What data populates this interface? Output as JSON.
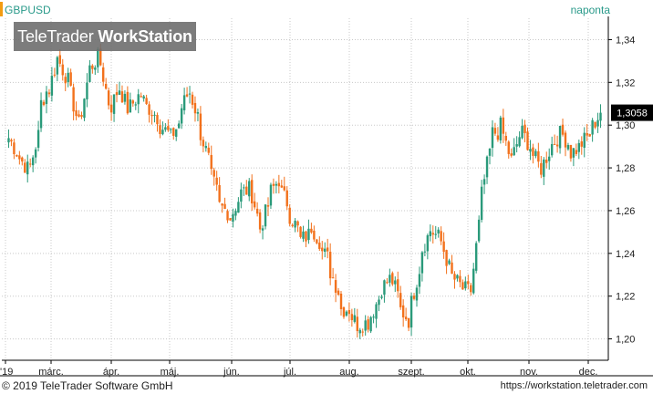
{
  "header": {
    "symbol": "GBPUSD",
    "interval": "naponta",
    "watermark_brand": "TeleTrader",
    "watermark_product": "WorkStation"
  },
  "footer": {
    "copyright": "© 2019 TeleTrader Software GmbH",
    "url": "https://workstation.teletrader.com"
  },
  "colors": {
    "up": "#2a9a7a",
    "down": "#f2711c",
    "grid": "#c8c8c8",
    "axis": "#000000",
    "last_price_bg": "#000000",
    "last_price_text": "#ffffff",
    "symbol_accent": "#f39c12"
  },
  "chart_data": {
    "type": "candlestick",
    "title": "GBPUSD",
    "xlabel": "",
    "ylabel": "",
    "ylim": [
      1.19,
      1.35
    ],
    "y_ticks": [
      "1,20",
      "1,22",
      "1,24",
      "1,26",
      "1,28",
      "1,30",
      "1,32",
      "1,34"
    ],
    "x_ticks": [
      "'19",
      "márc.",
      "ápr.",
      "máj.",
      "jún.",
      "júl.",
      "aug.",
      "szept.",
      "okt.",
      "nov.",
      "dec."
    ],
    "grid": true,
    "last_price": 1.3058,
    "last_price_label": "1,3058",
    "anchors": [
      [
        1.294,
        1.294
      ],
      [
        1.286,
        1.285
      ],
      [
        1.279,
        1.278
      ],
      [
        1.296,
        1.308
      ],
      [
        1.318,
        1.316
      ],
      [
        1.334,
        1.33
      ],
      [
        1.32,
        1.318
      ],
      [
        1.3,
        1.3
      ],
      [
        1.324,
        1.326
      ],
      [
        1.332,
        1.332
      ],
      [
        1.31,
        1.306
      ],
      [
        1.318,
        1.318
      ],
      [
        1.306,
        1.308
      ],
      [
        1.314,
        1.316
      ],
      [
        1.306,
        1.308
      ],
      [
        1.303,
        1.3
      ],
      [
        1.296,
        1.293
      ],
      [
        1.301,
        1.306
      ],
      [
        1.316,
        1.316
      ],
      [
        1.302,
        1.298
      ],
      [
        1.283,
        1.278
      ],
      [
        1.266,
        1.262
      ],
      [
        1.259,
        1.256
      ],
      [
        1.266,
        1.268
      ],
      [
        1.27,
        1.272
      ],
      [
        1.254,
        1.251
      ],
      [
        1.264,
        1.268
      ],
      [
        1.275,
        1.27
      ],
      [
        1.262,
        1.258
      ],
      [
        1.25,
        1.246
      ],
      [
        1.249,
        1.254
      ],
      [
        1.246,
        1.242
      ],
      [
        1.237,
        1.232
      ],
      [
        1.221,
        1.214
      ],
      [
        1.214,
        1.212
      ],
      [
        1.205,
        1.207
      ],
      [
        1.208,
        1.21
      ],
      [
        1.22,
        1.223
      ],
      [
        1.228,
        1.23
      ],
      [
        1.218,
        1.214
      ],
      [
        1.208,
        1.214
      ],
      [
        1.234,
        1.24
      ],
      [
        1.25,
        1.251
      ],
      [
        1.247,
        1.247
      ],
      [
        1.232,
        1.23
      ],
      [
        1.225,
        1.224
      ],
      [
        1.222,
        1.22
      ],
      [
        1.258,
        1.264
      ],
      [
        1.289,
        1.296
      ],
      [
        1.297,
        1.3
      ],
      [
        1.285,
        1.282
      ],
      [
        1.296,
        1.298
      ],
      [
        1.29,
        1.288
      ],
      [
        1.28,
        1.279
      ],
      [
        1.289,
        1.29
      ],
      [
        1.296,
        1.297
      ],
      [
        1.29,
        1.287
      ],
      [
        1.29,
        1.291
      ],
      [
        1.296,
        1.298
      ],
      [
        1.3058,
        1.3058
      ]
    ]
  }
}
